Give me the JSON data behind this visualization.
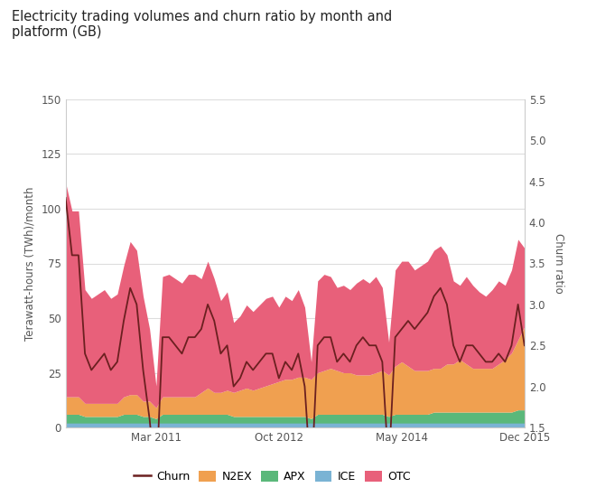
{
  "title": "Electricity trading volumes and churn ratio by month and\nplatform (GB)",
  "ylabel_left": "Terawatt-hours (TWh)/month",
  "ylabel_right": "Churn ratio",
  "colors": {
    "OTC": "#e8607a",
    "ICE": "#7ab3d4",
    "APX": "#5ab87a",
    "N2EX": "#f0a050",
    "churn": "#6b2020"
  },
  "ylim_left": [
    0,
    150
  ],
  "ylim_right": [
    1.5,
    5.5
  ],
  "yticks_left": [
    0,
    25,
    50,
    75,
    100,
    125,
    150
  ],
  "yticks_right": [
    1.5,
    2.0,
    2.5,
    3.0,
    3.5,
    4.0,
    4.5,
    5.0,
    5.5
  ],
  "ICE": [
    2,
    2,
    2,
    2,
    2,
    2,
    2,
    2,
    2,
    2,
    2,
    2,
    2,
    2,
    2,
    2,
    2,
    2,
    2,
    2,
    2,
    2,
    2,
    2,
    2,
    2,
    2,
    2,
    2,
    2,
    2,
    2,
    2,
    2,
    2,
    2,
    2,
    2,
    2,
    2,
    2,
    2,
    2,
    2,
    2,
    2,
    2,
    2,
    2,
    2,
    2,
    2,
    2,
    2,
    2,
    2,
    2,
    2,
    2,
    2,
    2,
    2,
    2,
    2,
    2,
    2,
    2,
    2,
    2,
    2,
    2,
    2
  ],
  "APX": [
    4,
    4,
    4,
    3,
    3,
    3,
    3,
    3,
    3,
    4,
    4,
    4,
    3,
    3,
    2,
    4,
    4,
    4,
    4,
    4,
    4,
    4,
    4,
    4,
    4,
    4,
    3,
    3,
    3,
    3,
    3,
    3,
    3,
    3,
    3,
    3,
    3,
    3,
    2,
    4,
    4,
    4,
    4,
    4,
    4,
    4,
    4,
    4,
    4,
    4,
    3,
    4,
    4,
    4,
    4,
    4,
    4,
    5,
    5,
    5,
    5,
    5,
    5,
    5,
    5,
    5,
    5,
    5,
    5,
    5,
    6,
    6
  ],
  "N2EX": [
    8,
    8,
    8,
    6,
    6,
    6,
    6,
    6,
    6,
    8,
    9,
    9,
    7,
    7,
    5,
    8,
    8,
    8,
    8,
    8,
    8,
    10,
    12,
    10,
    10,
    11,
    11,
    12,
    13,
    12,
    13,
    14,
    15,
    16,
    17,
    17,
    18,
    18,
    18,
    19,
    20,
    21,
    20,
    19,
    19,
    18,
    18,
    18,
    19,
    20,
    19,
    22,
    24,
    22,
    20,
    20,
    20,
    20,
    20,
    22,
    22,
    24,
    22,
    20,
    20,
    20,
    20,
    22,
    24,
    27,
    32,
    38
  ],
  "OTC": [
    98,
    85,
    85,
    52,
    48,
    50,
    52,
    48,
    50,
    60,
    70,
    66,
    48,
    33,
    10,
    55,
    56,
    54,
    52,
    56,
    56,
    52,
    58,
    52,
    42,
    45,
    32,
    34,
    38,
    36,
    38,
    40,
    40,
    34,
    38,
    36,
    40,
    32,
    8,
    42,
    44,
    42,
    38,
    40,
    38,
    42,
    44,
    42,
    44,
    38,
    15,
    44,
    46,
    48,
    46,
    48,
    50,
    54,
    56,
    50,
    38,
    34,
    40,
    38,
    35,
    33,
    36,
    38,
    34,
    38,
    46,
    36
  ],
  "churn": [
    4.3,
    3.6,
    3.6,
    2.4,
    2.2,
    2.3,
    2.4,
    2.2,
    2.3,
    2.8,
    3.2,
    3.0,
    2.2,
    1.6,
    0.8,
    2.6,
    2.6,
    2.5,
    2.4,
    2.6,
    2.6,
    2.7,
    3.0,
    2.8,
    2.4,
    2.5,
    2.0,
    2.1,
    2.3,
    2.2,
    2.3,
    2.4,
    2.4,
    2.1,
    2.3,
    2.2,
    2.4,
    2.0,
    0.8,
    2.5,
    2.6,
    2.6,
    2.3,
    2.4,
    2.3,
    2.5,
    2.6,
    2.5,
    2.5,
    2.3,
    1.0,
    2.6,
    2.7,
    2.8,
    2.7,
    2.8,
    2.9,
    3.1,
    3.2,
    3.0,
    2.5,
    2.3,
    2.5,
    2.5,
    2.4,
    2.3,
    2.3,
    2.4,
    2.3,
    2.5,
    3.0,
    2.5
  ],
  "xtick_pos": [
    14,
    33,
    52,
    71
  ],
  "xtick_labels": [
    "Mar 2011",
    "Oct 2012",
    "May 2014",
    "Dec 2015"
  ]
}
